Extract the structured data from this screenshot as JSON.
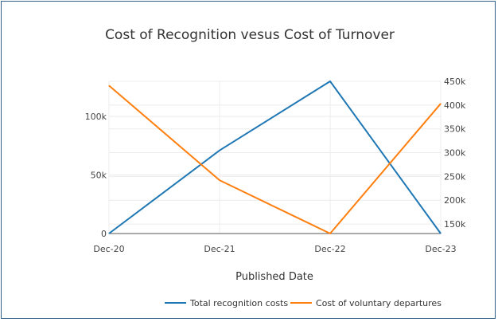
{
  "chart_data": {
    "type": "line",
    "title": "Cost of Recognition vesus Cost of Turnover",
    "xlabel": "Published Date",
    "categories": [
      "Dec-20",
      "Dec-21",
      "Dec-22",
      "Dec-23"
    ],
    "y_left": {
      "ylim": [
        0,
        130000
      ],
      "ticks": [
        0,
        50000,
        100000
      ],
      "tick_labels": [
        "0",
        "50k",
        "100k"
      ]
    },
    "y_right": {
      "ylim": [
        130000,
        450000
      ],
      "ticks": [
        150000,
        200000,
        250000,
        300000,
        350000,
        400000,
        450000
      ],
      "tick_labels": [
        "150k",
        "200k",
        "250k",
        "300k",
        "350k",
        "400k",
        "450k"
      ]
    },
    "series": [
      {
        "name": "Total recognition costs",
        "axis": "left",
        "color": "#1f77b4",
        "values": [
          0,
          71000,
          130000,
          0
        ]
      },
      {
        "name": "Cost of voluntary departures",
        "axis": "right",
        "color": "#ff7f0e",
        "values": [
          441000,
          242000,
          130000,
          403000
        ]
      }
    ],
    "grid": true,
    "legend_position": "bottom"
  }
}
